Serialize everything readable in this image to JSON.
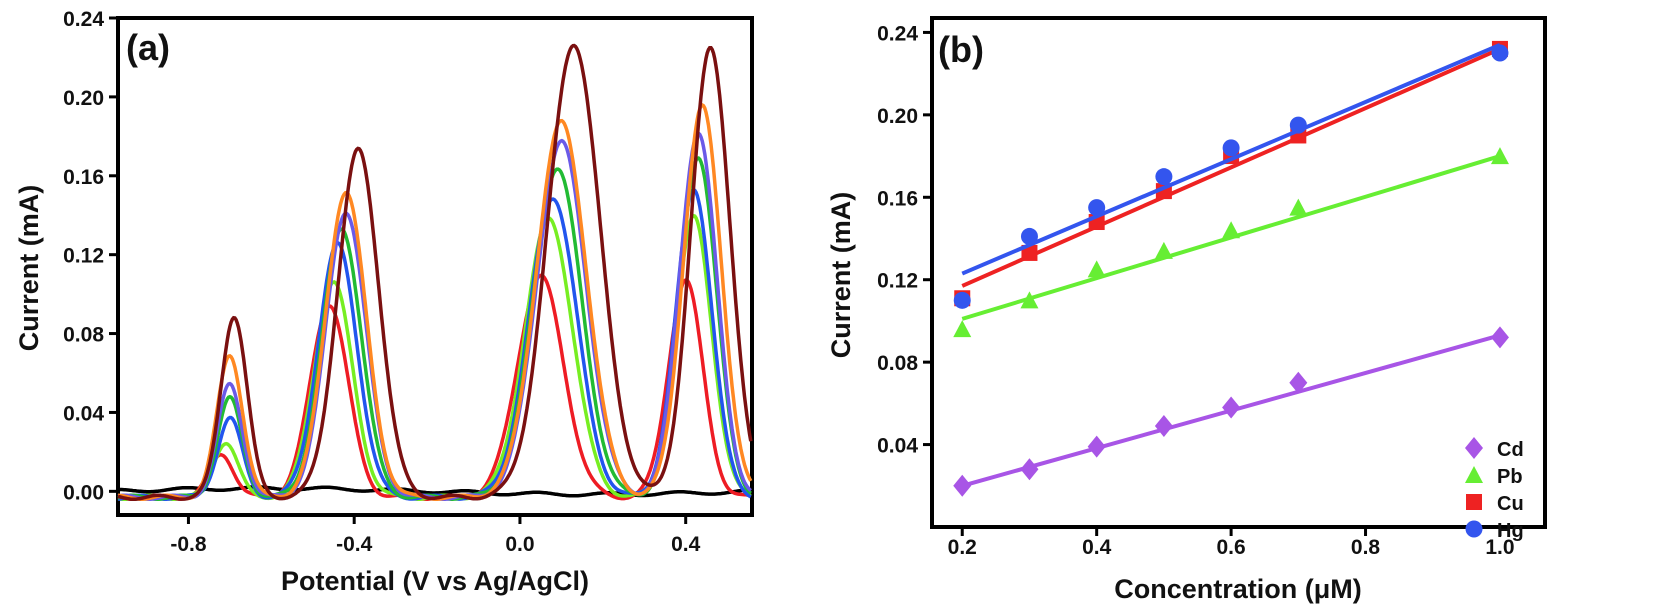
{
  "chart_data": [
    {
      "panel_label": "(a)",
      "type": "line",
      "xlabel": "Potential (V vs Ag/AgCl)",
      "ylabel": "Current (mA)",
      "xlim": [
        -0.97,
        0.56
      ],
      "ylim": [
        -0.012,
        0.24
      ],
      "xticks": [
        "-0.8",
        "-0.4",
        "0.0",
        "0.4"
      ],
      "xtick_values": [
        -0.8,
        -0.4,
        0.0,
        0.4
      ],
      "yticks": [
        "0.00",
        "0.04",
        "0.08",
        "0.12",
        "0.16",
        "0.20",
        "0.24"
      ],
      "ytick_values": [
        0,
        0.04,
        0.08,
        0.12,
        0.16,
        0.2,
        0.24
      ],
      "grid": false,
      "series": [
        {
          "color": "#000000",
          "peaks": []
        },
        {
          "color": "#ee1c24",
          "peaks": [
            [
              -0.72,
              0.022
            ],
            [
              -0.46,
              0.098
            ],
            [
              0.05,
              0.112
            ],
            [
              0.4,
              0.11
            ]
          ]
        },
        {
          "color": "#77ee22",
          "peaks": [
            [
              -0.71,
              0.028
            ],
            [
              -0.45,
              0.109
            ],
            [
              0.07,
              0.141
            ],
            [
              0.42,
              0.142
            ]
          ]
        },
        {
          "color": "#2255ee",
          "peaks": [
            [
              -0.7,
              0.04
            ],
            [
              -0.44,
              0.128
            ],
            [
              0.08,
              0.152
            ],
            [
              0.42,
              0.156
            ]
          ]
        },
        {
          "color": "#22bb33",
          "peaks": [
            [
              -0.7,
              0.05
            ],
            [
              -0.43,
              0.136
            ],
            [
              0.09,
              0.167
            ],
            [
              0.43,
              0.173
            ]
          ]
        },
        {
          "color": "#6a5ae8",
          "peaks": [
            [
              -0.7,
              0.057
            ],
            [
              -0.42,
              0.145
            ],
            [
              0.1,
              0.18
            ],
            [
              0.43,
              0.185
            ]
          ]
        },
        {
          "color": "#ff8822",
          "peaks": [
            [
              -0.7,
              0.072
            ],
            [
              -0.42,
              0.155
            ],
            [
              0.1,
              0.19
            ],
            [
              0.44,
              0.198
            ]
          ]
        },
        {
          "color": "#7a1010",
          "peaks": [
            [
              -0.69,
              0.092
            ],
            [
              -0.39,
              0.176
            ],
            [
              0.13,
              0.23
            ],
            [
              0.46,
              0.228
            ]
          ]
        }
      ]
    },
    {
      "panel_label": "(b)",
      "type": "scatter",
      "xlabel": "Concentration (μM)",
      "ylabel": "Current (mA)",
      "xlim": [
        0.155,
        1.067
      ],
      "ylim": [
        0.0,
        0.247
      ],
      "xticks": [
        "0.2",
        "0.4",
        "0.6",
        "0.8",
        "1.0"
      ],
      "xtick_values": [
        0.2,
        0.4,
        0.6,
        0.8,
        1.0
      ],
      "yticks": [
        "0.04",
        "0.08",
        "0.12",
        "0.16",
        "0.20",
        "0.24"
      ],
      "ytick_values": [
        0.04,
        0.08,
        0.12,
        0.16,
        0.2,
        0.24
      ],
      "grid": false,
      "legend_position": "bottom-right",
      "x": [
        0.2,
        0.3,
        0.4,
        0.5,
        0.6,
        0.7,
        1.0
      ],
      "series": [
        {
          "name": "Cd",
          "marker": "diamond",
          "color": "#a855e6",
          "values": [
            0.02,
            0.028,
            0.039,
            0.049,
            0.058,
            0.07,
            0.092
          ],
          "fit": [
            0.02,
            0.093
          ]
        },
        {
          "name": "Pb",
          "marker": "triangle",
          "color": "#66ee33",
          "values": [
            0.096,
            0.11,
            0.125,
            0.134,
            0.144,
            0.155,
            0.18
          ],
          "fit": [
            0.101,
            0.18
          ]
        },
        {
          "name": "Cu",
          "marker": "square",
          "color": "#ee2222",
          "values": [
            0.111,
            0.133,
            0.148,
            0.163,
            0.18,
            0.19,
            0.232
          ],
          "fit": [
            0.117,
            0.232
          ]
        },
        {
          "name": "Hg",
          "marker": "circle",
          "color": "#3355ee",
          "values": [
            0.11,
            0.141,
            0.155,
            0.17,
            0.184,
            0.195,
            0.23
          ],
          "fit": [
            0.123,
            0.234
          ]
        }
      ]
    }
  ]
}
